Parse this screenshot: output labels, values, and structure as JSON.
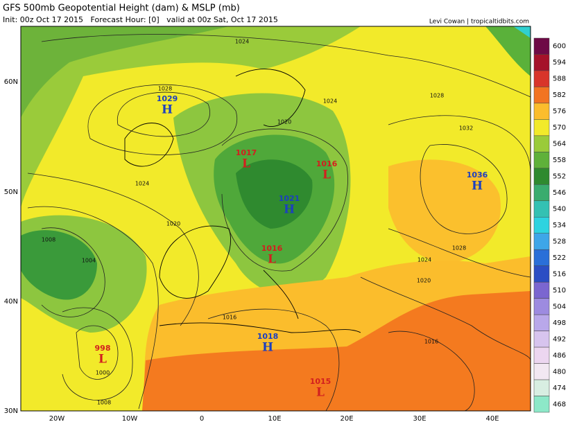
{
  "header": {
    "title": "GFS 500mb Geopotential Height (dam) & MSLP (mb)",
    "subtitle": "Init: 00z Oct 17 2015   Forecast Hour: [0]   valid at 00z Sat, Oct 17 2015",
    "credit": "Levi Cowan | tropicaltidbits.com"
  },
  "colorbar": {
    "labels": [
      "600",
      "594",
      "588",
      "582",
      "576",
      "570",
      "564",
      "558",
      "552",
      "546",
      "540",
      "534",
      "528",
      "522",
      "516",
      "510",
      "504",
      "498",
      "492",
      "486",
      "480",
      "474",
      "468"
    ]
  },
  "axes": {
    "latitudes": [
      "60N",
      "50N",
      "40N",
      "30N"
    ],
    "longitudes": [
      "20W",
      "10W",
      "0",
      "10E",
      "20E",
      "30E",
      "40E"
    ]
  },
  "centers": [
    {
      "letter": "H",
      "value": "1029"
    },
    {
      "letter": "L",
      "value": "1017"
    },
    {
      "letter": "L",
      "value": "1016"
    },
    {
      "letter": "H",
      "value": "1021"
    },
    {
      "letter": "L",
      "value": "1016"
    },
    {
      "letter": "H",
      "value": "1036"
    },
    {
      "letter": "L",
      "value": "998"
    },
    {
      "letter": "H",
      "value": "1018"
    },
    {
      "letter": "L",
      "value": "1015"
    }
  ],
  "contour_labels": [
    "1024",
    "1028",
    "1024",
    "1020",
    "1008",
    "1004",
    "1000",
    "1008",
    "1016",
    "1020",
    "1024",
    "1028",
    "1032",
    "1028",
    "1024",
    "1020",
    "1016"
  ]
}
